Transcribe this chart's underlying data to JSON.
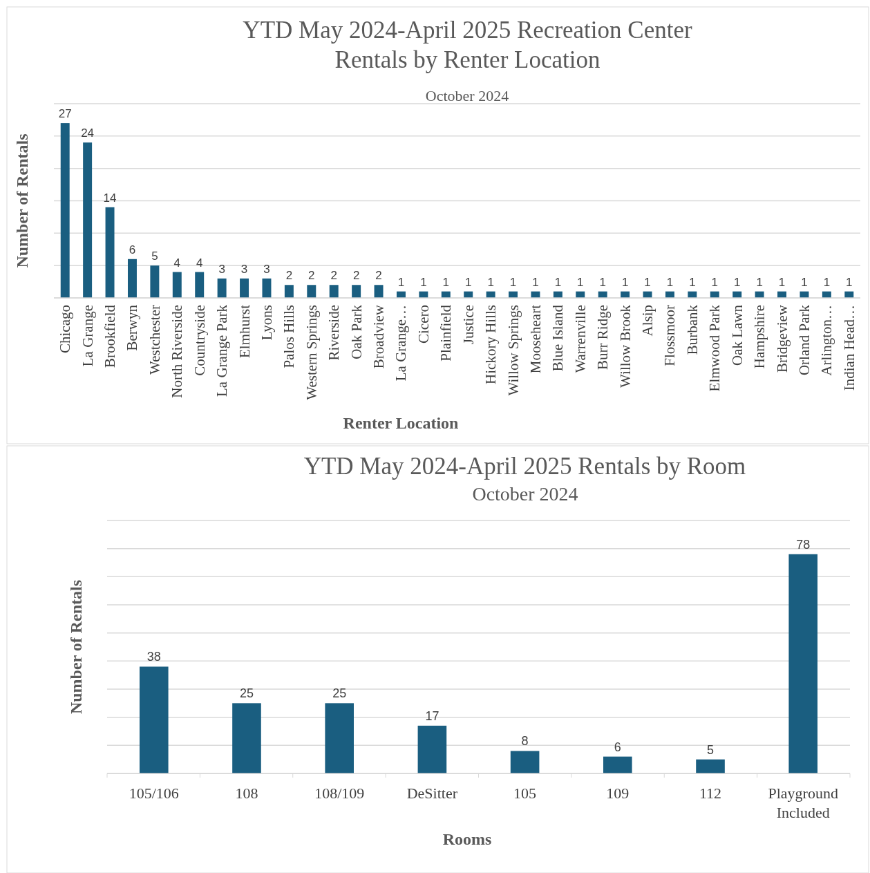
{
  "chart_data": [
    {
      "type": "bar",
      "title": "YTD May 2024-April 2025 Recreation Center Rentals by Renter Location",
      "subtitle": "October 2024",
      "xlabel": "Renter Location",
      "ylabel": "Number of Rentals",
      "categories": [
        "Chicago",
        "La Grange",
        "Brookfield",
        "Berwyn",
        "Westchester",
        "North Riverside",
        "Countryside",
        "La Grange Park",
        "Elmhurst",
        "Lyons",
        "Palos Hills",
        "Western Springs",
        "Riverside",
        "Oak Park",
        "Broadview",
        "La Grange…",
        "Cicero",
        "Plainfield",
        "Justice",
        "Hickory Hills",
        "Willow Springs",
        "Mooseheart",
        "Blue Island",
        "Warrenville",
        "Burr Ridge",
        "Willow Brook",
        "Alsip",
        "Flossmoor",
        "Burbank",
        "Elmwood Park",
        "Oak Lawn",
        "Hampshire",
        "Bridgeview",
        "Orland Park",
        "Arlington…",
        "Indian Head…"
      ],
      "values": [
        27,
        24,
        14,
        6,
        5,
        4,
        4,
        3,
        3,
        3,
        2,
        2,
        2,
        2,
        2,
        1,
        1,
        1,
        1,
        1,
        1,
        1,
        1,
        1,
        1,
        1,
        1,
        1,
        1,
        1,
        1,
        1,
        1,
        1,
        1,
        1
      ],
      "color": "#1a5e80",
      "ylim": [
        0,
        30
      ],
      "yticks": [
        {
          "value": 0,
          "label": null
        },
        {
          "value": 5,
          "label": null
        },
        {
          "value": 10,
          "label": null
        },
        {
          "value": 15,
          "label": null
        },
        {
          "value": 20,
          "label": null
        },
        {
          "value": 25,
          "label": null
        },
        {
          "value": 30,
          "label": null
        }
      ],
      "grid": "y",
      "data_labels": true,
      "tick_labels": "x"
    },
    {
      "type": "bar",
      "title": "YTD May 2024-April 2025 Rentals by Room",
      "subtitle": "October 2024",
      "xlabel": "Rooms",
      "ylabel": "Number of Rentals",
      "categories": [
        "105/106",
        "108",
        "108/109",
        "DeSitter",
        "105",
        "109",
        "112",
        "Playground Included"
      ],
      "values": [
        38,
        25,
        25,
        17,
        8,
        6,
        5,
        78
      ],
      "color": "#1a5e80",
      "ylim": [
        0,
        90
      ],
      "yticks": [
        {
          "value": 0,
          "label": null
        },
        {
          "value": 10,
          "label": null
        },
        {
          "value": 20,
          "label": null
        },
        {
          "value": 30,
          "label": null
        },
        {
          "value": 40,
          "label": null
        },
        {
          "value": 50,
          "label": null
        },
        {
          "value": 60,
          "label": null
        },
        {
          "value": 70,
          "label": null
        },
        {
          "value": 80,
          "label": null
        },
        {
          "value": 90,
          "label": null
        }
      ],
      "grid": "y",
      "data_labels": true,
      "tick_labels": "x"
    }
  ]
}
